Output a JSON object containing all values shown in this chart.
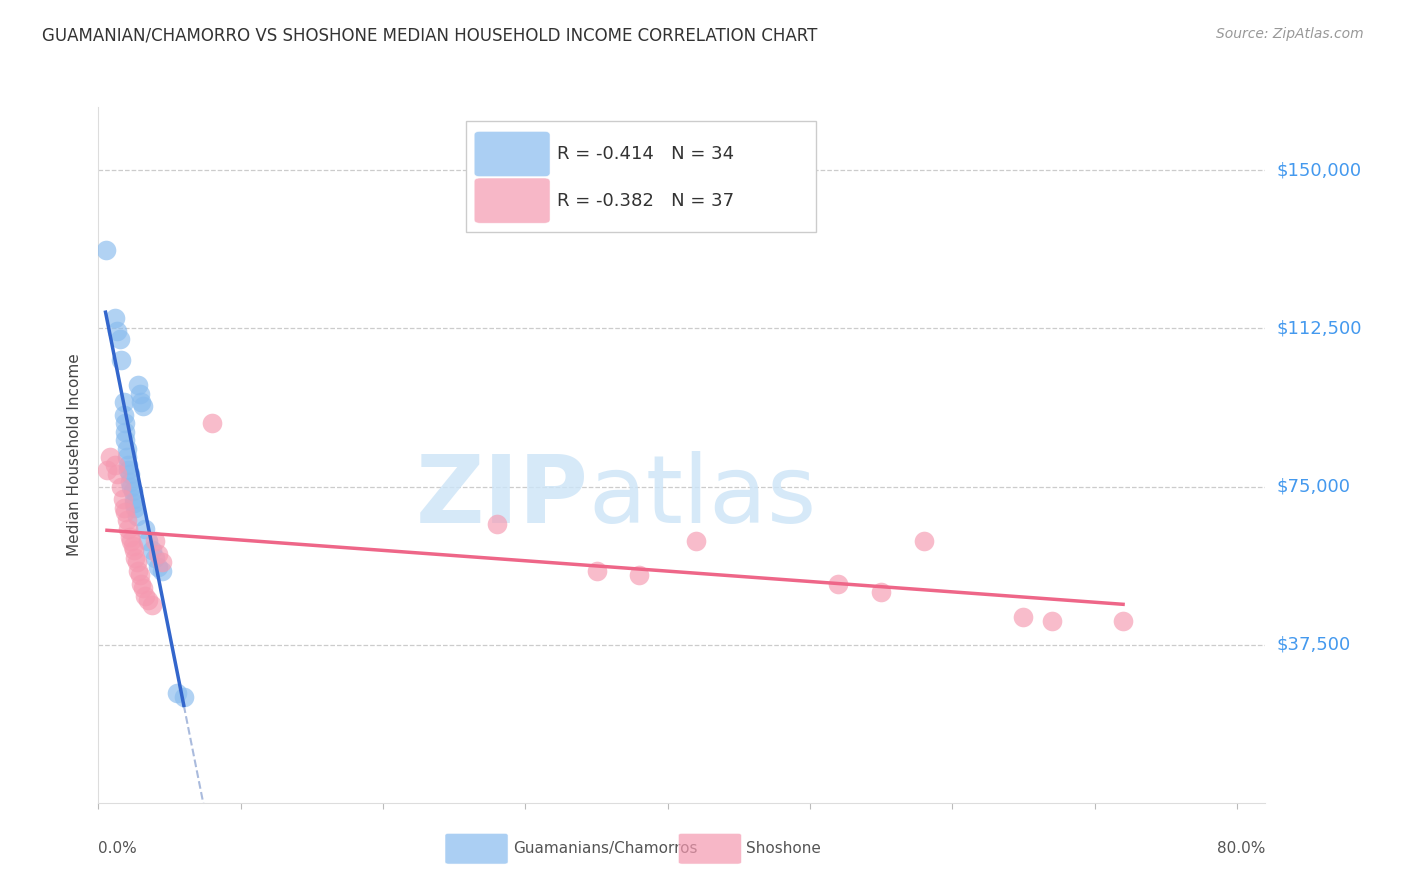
{
  "title": "GUAMANIAN/CHAMORRO VS SHOSHONE MEDIAN HOUSEHOLD INCOME CORRELATION CHART",
  "source": "Source: ZipAtlas.com",
  "ylabel": "Median Household Income",
  "y_ticks": [
    37500,
    75000,
    112500,
    150000
  ],
  "y_tick_labels": [
    "$37,500",
    "$75,000",
    "$112,500",
    "$150,000"
  ],
  "ylim": [
    0,
    165000
  ],
  "xlim": [
    0.0,
    0.82
  ],
  "legend1_r": "-0.414",
  "legend1_n": "34",
  "legend2_r": "-0.382",
  "legend2_n": "37",
  "legend_label1": "Guamanians/Chamorros",
  "legend_label2": "Shoshone",
  "blue_color": "#88bbee",
  "pink_color": "#f599b0",
  "blue_line_color": "#3366cc",
  "pink_line_color": "#ee6688",
  "dashed_line_color": "#aabbdd",
  "blue_scatter_x": [
    0.005,
    0.012,
    0.013,
    0.015,
    0.016,
    0.018,
    0.018,
    0.019,
    0.019,
    0.019,
    0.02,
    0.02,
    0.021,
    0.021,
    0.022,
    0.022,
    0.023,
    0.024,
    0.025,
    0.025,
    0.026,
    0.027,
    0.028,
    0.029,
    0.03,
    0.031,
    0.033,
    0.035,
    0.038,
    0.04,
    0.042,
    0.045,
    0.055,
    0.06
  ],
  "blue_scatter_y": [
    131000,
    115000,
    112000,
    110000,
    105000,
    95000,
    92000,
    90000,
    88000,
    86000,
    84000,
    82000,
    80000,
    79000,
    78000,
    76000,
    75000,
    74000,
    72000,
    71000,
    70000,
    68000,
    99000,
    97000,
    95000,
    94000,
    65000,
    62000,
    60000,
    58000,
    56000,
    55000,
    26000,
    25000
  ],
  "pink_scatter_x": [
    0.006,
    0.008,
    0.012,
    0.013,
    0.016,
    0.017,
    0.018,
    0.019,
    0.02,
    0.021,
    0.022,
    0.023,
    0.024,
    0.025,
    0.026,
    0.027,
    0.028,
    0.029,
    0.03,
    0.031,
    0.033,
    0.035,
    0.038,
    0.04,
    0.042,
    0.045,
    0.08,
    0.28,
    0.35,
    0.38,
    0.42,
    0.52,
    0.55,
    0.58,
    0.65,
    0.67,
    0.72
  ],
  "pink_scatter_y": [
    79000,
    82000,
    80000,
    78000,
    75000,
    72000,
    70000,
    69000,
    67000,
    65000,
    63000,
    62000,
    61000,
    60000,
    58000,
    57000,
    55000,
    54000,
    52000,
    51000,
    49000,
    48000,
    47000,
    62000,
    59000,
    57000,
    90000,
    66000,
    55000,
    54000,
    62000,
    52000,
    50000,
    62000,
    44000,
    43000,
    43000
  ]
}
